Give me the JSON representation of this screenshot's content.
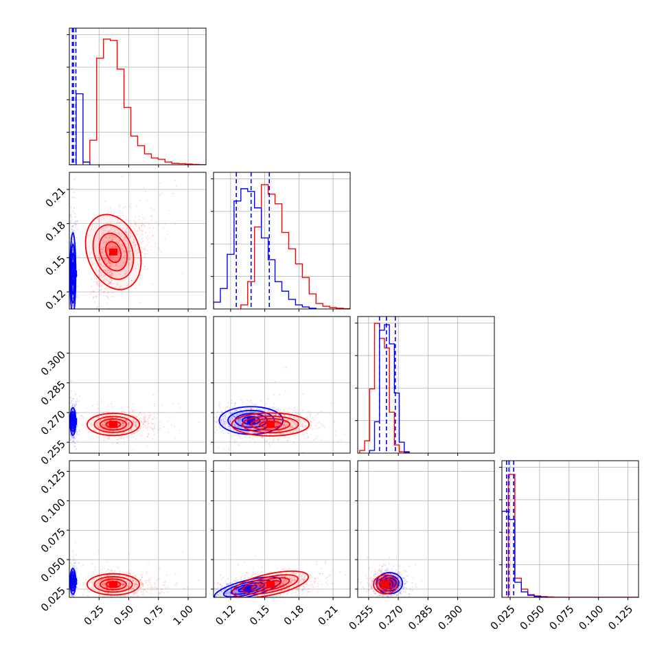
{
  "chart_data": {
    "type": "corner",
    "title": "",
    "series": [
      {
        "name": "",
        "color": "#0000ff"
      },
      {
        "name": "",
        "color": "#ff0000"
      }
    ],
    "quantile_lines": {
      "color": "#0000ff",
      "style": "dashed"
    },
    "parameters": [
      {
        "range": [
          0.0,
          1.15
        ],
        "ticks": [
          "0.25",
          "0.50",
          "0.75",
          "1.00"
        ],
        "tick_values": [
          0.25,
          0.5,
          0.75,
          1.0
        ]
      },
      {
        "range": [
          0.105,
          0.225
        ],
        "ticks": [
          "0.12",
          "0.15",
          "0.18",
          "0.21"
        ],
        "tick_values": [
          0.12,
          0.15,
          0.18,
          0.21
        ]
      },
      {
        "range": [
          0.2495,
          0.3185
        ],
        "ticks": [
          "0.255",
          "0.270",
          "0.285",
          "0.300"
        ],
        "tick_values": [
          0.255,
          0.27,
          0.285,
          0.3
        ]
      },
      {
        "range": [
          0.018,
          0.134
        ],
        "ticks": [
          "0.025",
          "0.050",
          "0.075",
          "0.100",
          "0.125"
        ],
        "tick_values": [
          0.025,
          0.05,
          0.075,
          0.1,
          0.125
        ]
      }
    ],
    "diagonal": [
      {
        "blue": {
          "edges": [
            0.0,
            0.0575,
            0.115,
            0.1725
          ],
          "counts": [
            0,
            0.52,
            0.02
          ]
        },
        "red": {
          "edges": [
            0.115,
            0.1725,
            0.23,
            0.2875,
            0.345,
            0.4025,
            0.46,
            0.5175,
            0.575,
            0.6325,
            0.69,
            0.7475,
            0.805,
            0.8625,
            0.92,
            0.9775,
            1.035,
            1.0925,
            1.15
          ],
          "counts": [
            0.02,
            0.18,
            0.78,
            0.92,
            0.91,
            0.7,
            0.42,
            0.21,
            0.14,
            0.08,
            0.05,
            0.04,
            0.02,
            0.01,
            0.008,
            0.005,
            0.003,
            0.001
          ]
        },
        "quantiles": [
          0.025,
          0.035,
          0.055
        ]
      },
      {
        "blue": {
          "edges": [
            0.105,
            0.111,
            0.117,
            0.123,
            0.129,
            0.135,
            0.141,
            0.147,
            0.153,
            0.159,
            0.165,
            0.171,
            0.177,
            0.183,
            0.189,
            0.195
          ],
          "counts": [
            0.05,
            0.15,
            0.4,
            0.79,
            0.88,
            0.86,
            0.74,
            0.52,
            0.36,
            0.2,
            0.13,
            0.07,
            0.03,
            0.015,
            0.005
          ]
        },
        "red": {
          "edges": [
            0.129,
            0.135,
            0.141,
            0.147,
            0.153,
            0.159,
            0.165,
            0.171,
            0.177,
            0.183,
            0.189,
            0.195,
            0.201,
            0.207,
            0.213,
            0.219,
            0.225
          ],
          "counts": [
            0.03,
            0.2,
            0.6,
            0.91,
            0.84,
            0.77,
            0.56,
            0.44,
            0.33,
            0.23,
            0.11,
            0.04,
            0.02,
            0.01,
            0.005,
            0.002
          ]
        },
        "quantiles": [
          0.125,
          0.138,
          0.154
        ]
      },
      {
        "blue": {
          "edges": [
            0.2555,
            0.258,
            0.2605,
            0.263,
            0.2655,
            0.268,
            0.2705,
            0.273,
            0.2755
          ],
          "counts": [
            0.02,
            0.23,
            0.9,
            0.94,
            0.8,
            0.44,
            0.08,
            0.01
          ]
        },
        "red": {
          "edges": [
            0.2505,
            0.253,
            0.2555,
            0.258,
            0.2605,
            0.263,
            0.2655,
            0.268,
            0.2705,
            0.273,
            0.2755
          ],
          "counts": [
            0.02,
            0.09,
            0.47,
            0.95,
            0.84,
            0.77,
            0.3,
            0.06,
            0.01,
            0.005
          ]
        },
        "quantiles": [
          0.2605,
          0.264,
          0.2685
        ]
      },
      {
        "blue": {
          "edges": [
            0.018,
            0.0235,
            0.029,
            0.0345,
            0.04,
            0.0455,
            0.051,
            0.0565
          ],
          "counts": [
            0.63,
            0.57,
            0.11,
            0.04,
            0.015,
            0.005,
            0.002
          ]
        },
        "red": {
          "edges": [
            0.0235,
            0.029,
            0.0345,
            0.04,
            0.0455,
            0.051,
            0.0565,
            0.062,
            0.134
          ],
          "counts": [
            0.9,
            0.14,
            0.06,
            0.02,
            0.01,
            0.005,
            0.003,
            0.001
          ]
        },
        "quantiles": [
          0.022,
          0.024,
          0.028
        ]
      }
    ],
    "pairs": [
      {
        "row": 1,
        "col": 0,
        "blue": {
          "center": [
            0.03,
            0.136
          ],
          "sd": [
            0.012,
            0.018
          ]
        },
        "red": {
          "center": [
            0.37,
            0.155
          ],
          "sd": [
            0.11,
            0.017
          ],
          "rho": 0.55
        }
      },
      {
        "row": 2,
        "col": 0,
        "blue": {
          "center": [
            0.03,
            0.2655
          ],
          "sd": [
            0.012,
            0.0035
          ]
        },
        "red": {
          "center": [
            0.37,
            0.264
          ],
          "sd": [
            0.11,
            0.0028
          ]
        }
      },
      {
        "row": 2,
        "col": 1,
        "blue": {
          "center": [
            0.138,
            0.266
          ],
          "sd": [
            0.014,
            0.0035
          ]
        },
        "red": {
          "center": [
            0.155,
            0.264
          ],
          "sd": [
            0.017,
            0.0029
          ]
        }
      },
      {
        "row": 3,
        "col": 0,
        "blue": {
          "center": [
            0.03,
            0.0315
          ],
          "sd": [
            0.012,
            0.0055
          ]
        },
        "red": {
          "center": [
            0.37,
            0.029
          ],
          "sd": [
            0.11,
            0.0045
          ]
        }
      },
      {
        "row": 3,
        "col": 1,
        "blue": {
          "center": [
            0.135,
            0.0255
          ],
          "sd": [
            0.015,
            0.0035
          ],
          "rho": 0.4
        },
        "red": {
          "center": [
            0.155,
            0.029
          ],
          "sd": [
            0.017,
            0.0045
          ],
          "rho": 0.35
        }
      },
      {
        "row": 3,
        "col": 2,
        "blue": {
          "center": [
            0.2655,
            0.03
          ],
          "sd": [
            0.0033,
            0.0045
          ]
        },
        "red": {
          "center": [
            0.2635,
            0.029
          ],
          "sd": [
            0.003,
            0.004
          ]
        }
      }
    ]
  }
}
